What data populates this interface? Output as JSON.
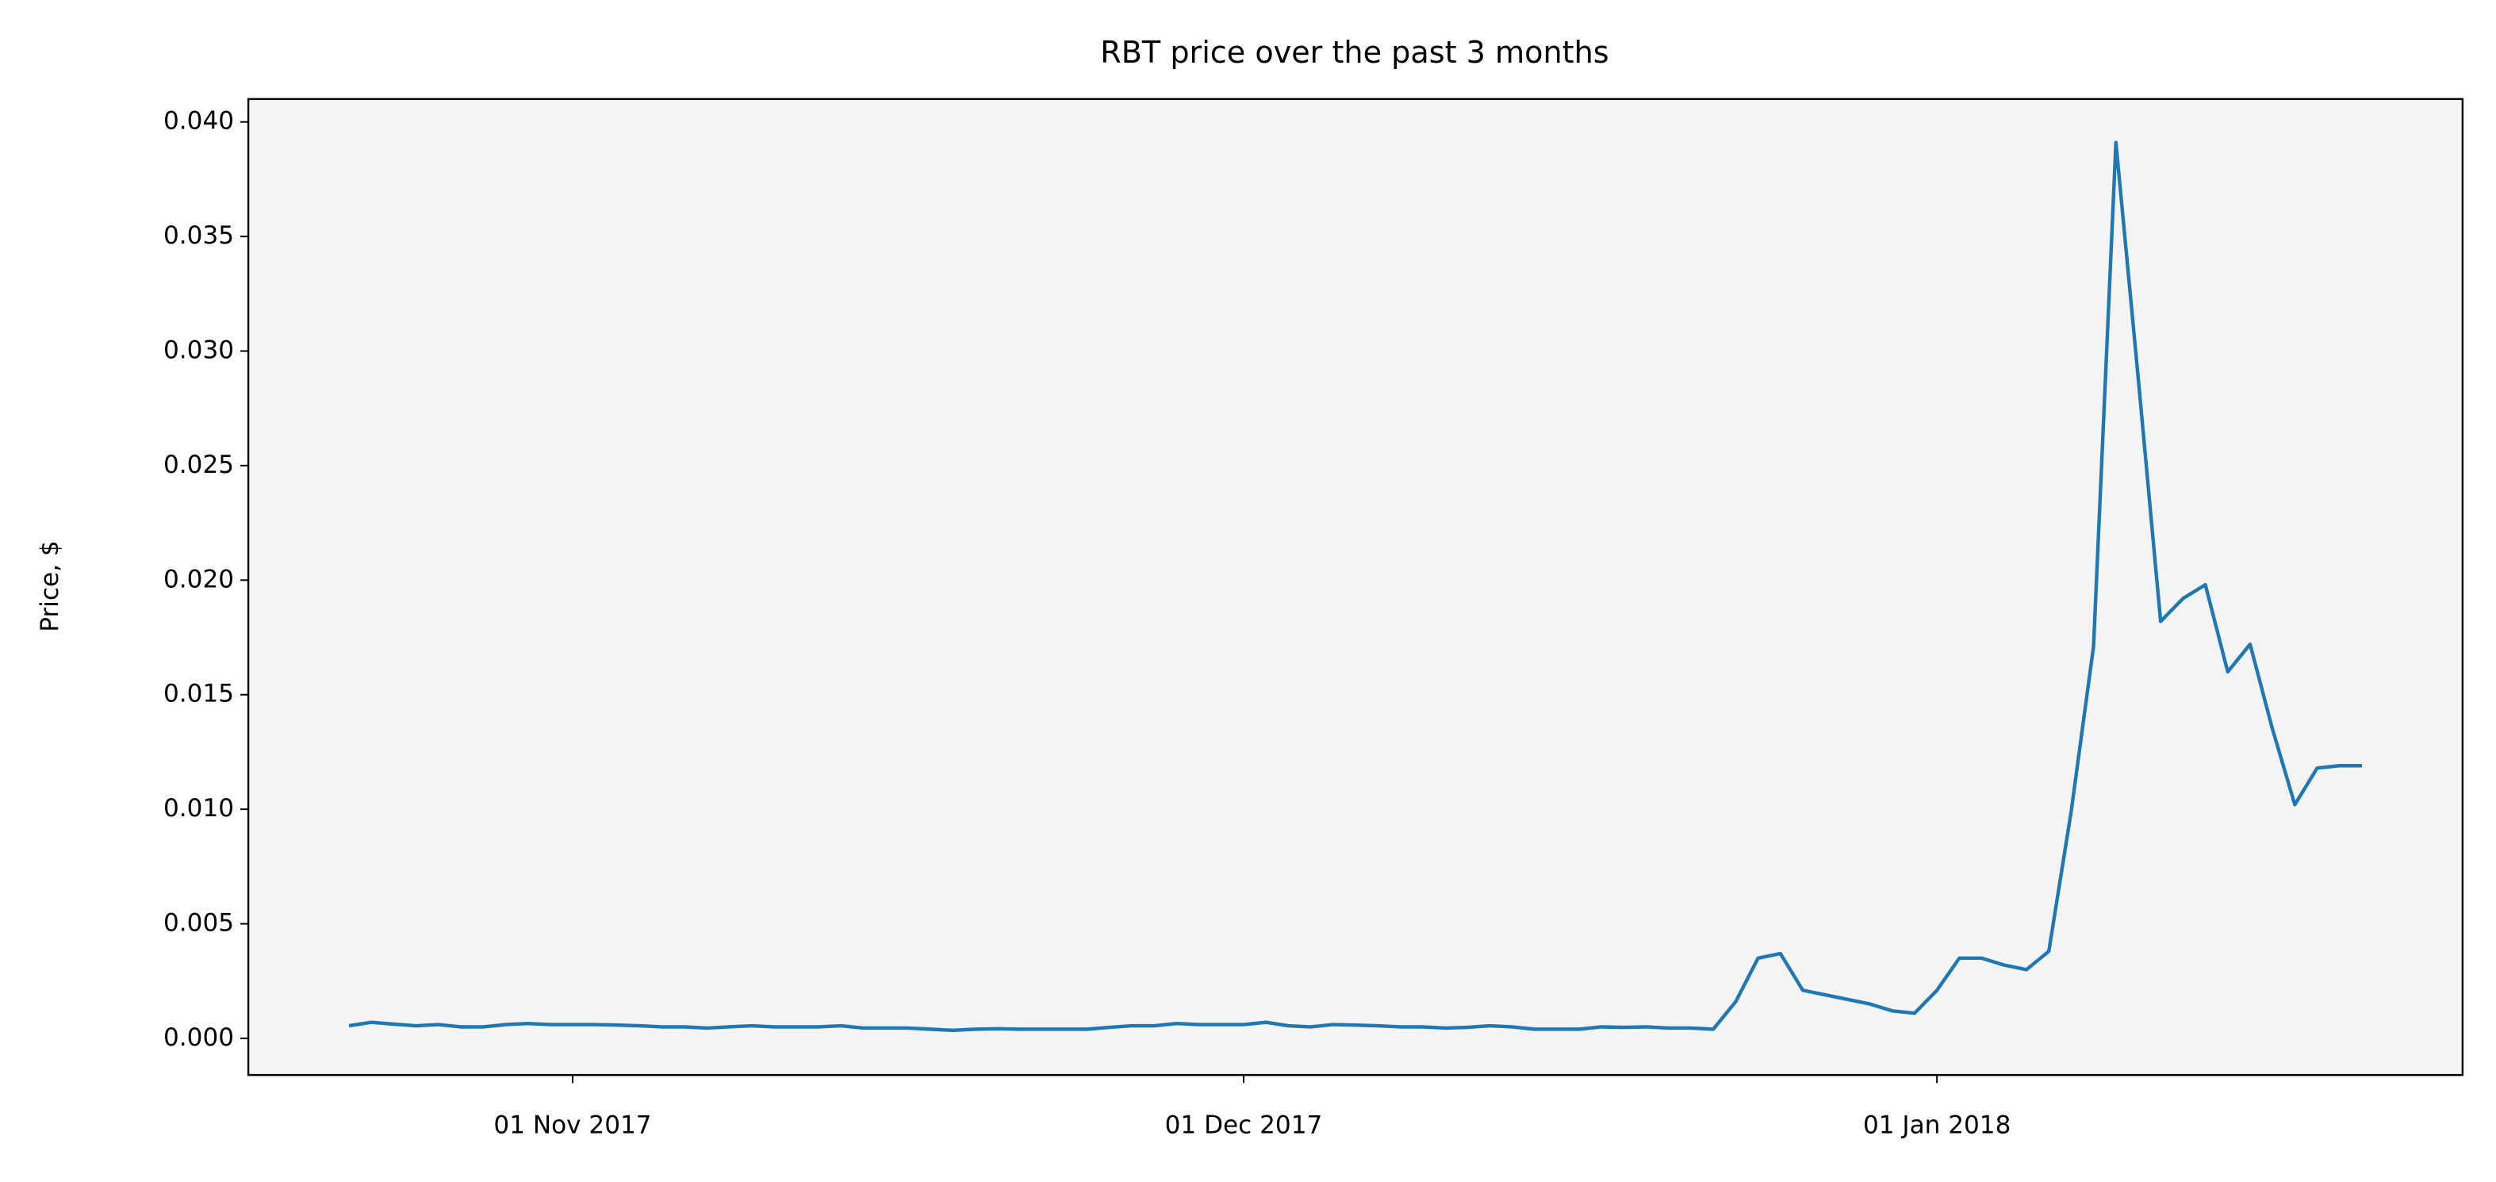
{
  "chart_data": {
    "type": "line",
    "title": "RBT price over the past 3 months",
    "y_label": "Price, $",
    "x": [
      "2017-10-22",
      "2017-10-23",
      "2017-10-24",
      "2017-10-25",
      "2017-10-26",
      "2017-10-27",
      "2017-10-28",
      "2017-10-29",
      "2017-10-30",
      "2017-10-31",
      "2017-11-01",
      "2017-11-02",
      "2017-11-03",
      "2017-11-04",
      "2017-11-05",
      "2017-11-06",
      "2017-11-07",
      "2017-11-08",
      "2017-11-09",
      "2017-11-10",
      "2017-11-11",
      "2017-11-12",
      "2017-11-13",
      "2017-11-14",
      "2017-11-15",
      "2017-11-16",
      "2017-11-17",
      "2017-11-18",
      "2017-11-19",
      "2017-11-20",
      "2017-11-21",
      "2017-11-22",
      "2017-11-23",
      "2017-11-24",
      "2017-11-25",
      "2017-11-26",
      "2017-11-27",
      "2017-11-28",
      "2017-11-29",
      "2017-11-30",
      "2017-12-01",
      "2017-12-02",
      "2017-12-03",
      "2017-12-04",
      "2017-12-05",
      "2017-12-06",
      "2017-12-07",
      "2017-12-08",
      "2017-12-09",
      "2017-12-10",
      "2017-12-11",
      "2017-12-12",
      "2017-12-13",
      "2017-12-14",
      "2017-12-15",
      "2017-12-16",
      "2017-12-17",
      "2017-12-18",
      "2017-12-19",
      "2017-12-20",
      "2017-12-21",
      "2017-12-22",
      "2017-12-23",
      "2017-12-24",
      "2017-12-25",
      "2017-12-26",
      "2017-12-27",
      "2017-12-28",
      "2017-12-29",
      "2017-12-30",
      "2017-12-31",
      "2018-01-01",
      "2018-01-02",
      "2018-01-03",
      "2018-01-04",
      "2018-01-05",
      "2018-01-06",
      "2018-01-07",
      "2018-01-08",
      "2018-01-09",
      "2018-01-10",
      "2018-01-11",
      "2018-01-12",
      "2018-01-13",
      "2018-01-14",
      "2018-01-15",
      "2018-01-16",
      "2018-01-17",
      "2018-01-18",
      "2018-01-19",
      "2018-01-20"
    ],
    "values": [
      0.00055,
      0.0007,
      0.00062,
      0.00055,
      0.0006,
      0.0005,
      0.0005,
      0.0006,
      0.00065,
      0.0006,
      0.0006,
      0.0006,
      0.00058,
      0.00055,
      0.0005,
      0.0005,
      0.00045,
      0.0005,
      0.00055,
      0.0005,
      0.0005,
      0.0005,
      0.00055,
      0.00045,
      0.00045,
      0.00045,
      0.0004,
      0.00035,
      0.0004,
      0.00042,
      0.0004,
      0.0004,
      0.0004,
      0.0004,
      0.00048,
      0.00055,
      0.00055,
      0.00065,
      0.0006,
      0.0006,
      0.0006,
      0.0007,
      0.00055,
      0.0005,
      0.0006,
      0.00058,
      0.00055,
      0.0005,
      0.0005,
      0.00045,
      0.00048,
      0.00055,
      0.0005,
      0.0004,
      0.0004,
      0.0004,
      0.0005,
      0.00048,
      0.0005,
      0.00045,
      0.00045,
      0.0004,
      0.0016,
      0.0035,
      0.0037,
      0.0021,
      0.0019,
      0.0017,
      0.0015,
      0.0012,
      0.0011,
      0.0021,
      0.0035,
      0.0035,
      0.0032,
      0.003,
      0.0038,
      0.0099,
      0.0171,
      0.0391,
      0.0288,
      0.0182,
      0.0192,
      0.0198,
      0.016,
      0.0172,
      0.0135,
      0.0102,
      0.0118,
      0.0119,
      0.0119
    ],
    "color": "#1f77b4",
    "background": "#f4f4f4",
    "xlim": [
      "2017-10-17T12:00",
      "2018-01-24T12:00"
    ],
    "xticks": [
      {
        "value": "2017-11-01",
        "label": "01 Nov 2017"
      },
      {
        "value": "2017-12-01",
        "label": "01 Dec 2017"
      },
      {
        "value": "2018-01-01",
        "label": "01 Jan 2018"
      }
    ],
    "ylim": [
      -0.0016,
      0.041
    ],
    "yticks": [
      {
        "value": 0,
        "label": "0.000"
      },
      {
        "value": 0.005,
        "label": "0.005"
      },
      {
        "value": 0.01,
        "label": "0.010"
      },
      {
        "value": 0.015,
        "label": "0.015"
      },
      {
        "value": 0.02,
        "label": "0.020"
      },
      {
        "value": 0.025,
        "label": "0.025"
      },
      {
        "value": 0.03,
        "label": "0.030"
      },
      {
        "value": 0.035,
        "label": "0.035"
      },
      {
        "value": 0.04,
        "label": "0.040"
      }
    ],
    "grid": false
  }
}
